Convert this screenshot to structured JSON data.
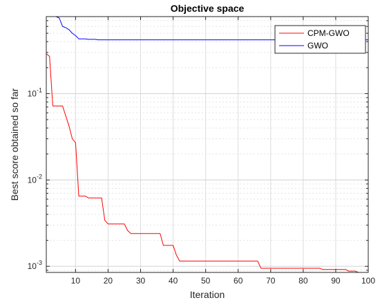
{
  "chart_data": {
    "type": "line",
    "title": "Objective space",
    "xlabel": "Iteration",
    "ylabel": "Best score obtained so far",
    "xlim": [
      1,
      100
    ],
    "ylim": [
      0.00085,
      0.78
    ],
    "yscale": "log",
    "grid": true,
    "minor_grid": true,
    "legend_position": "top-right",
    "x_ticks": [
      {
        "v": 10,
        "label": "10"
      },
      {
        "v": 20,
        "label": "20"
      },
      {
        "v": 30,
        "label": "30"
      },
      {
        "v": 40,
        "label": "40"
      },
      {
        "v": 50,
        "label": "50"
      },
      {
        "v": 60,
        "label": "60"
      },
      {
        "v": 70,
        "label": "70"
      },
      {
        "v": 80,
        "label": "80"
      },
      {
        "v": 90,
        "label": "90"
      },
      {
        "v": 100,
        "label": "100"
      }
    ],
    "y_ticks": [
      {
        "v": 0.001,
        "base": "10",
        "exp": "-3"
      },
      {
        "v": 0.01,
        "base": "10",
        "exp": "-2"
      },
      {
        "v": 0.1,
        "base": "10",
        "exp": "-1"
      }
    ],
    "series": [
      {
        "name": "CPM-GWO",
        "color": "#ff0000",
        "points": [
          [
            1,
            0.29
          ],
          [
            2,
            0.27
          ],
          [
            3,
            0.072
          ],
          [
            4,
            0.072
          ],
          [
            5,
            0.072
          ],
          [
            6,
            0.072
          ],
          [
            7,
            0.055
          ],
          [
            8,
            0.042
          ],
          [
            9,
            0.03
          ],
          [
            10,
            0.027
          ],
          [
            11,
            0.0065
          ],
          [
            12,
            0.0065
          ],
          [
            13,
            0.0065
          ],
          [
            14,
            0.0062
          ],
          [
            15,
            0.0062
          ],
          [
            16,
            0.0062
          ],
          [
            17,
            0.0062
          ],
          [
            18,
            0.0062
          ],
          [
            19,
            0.0034
          ],
          [
            20,
            0.0031
          ],
          [
            21,
            0.0031
          ],
          [
            22,
            0.0031
          ],
          [
            23,
            0.0031
          ],
          [
            24,
            0.0031
          ],
          [
            25,
            0.0031
          ],
          [
            26,
            0.0026
          ],
          [
            27,
            0.0024
          ],
          [
            28,
            0.0024
          ],
          [
            29,
            0.0024
          ],
          [
            30,
            0.0024
          ],
          [
            31,
            0.0024
          ],
          [
            32,
            0.0024
          ],
          [
            33,
            0.0024
          ],
          [
            34,
            0.0024
          ],
          [
            35,
            0.0024
          ],
          [
            36,
            0.0024
          ],
          [
            37,
            0.00175
          ],
          [
            38,
            0.00175
          ],
          [
            39,
            0.00175
          ],
          [
            40,
            0.00175
          ],
          [
            41,
            0.00135
          ],
          [
            42,
            0.00115
          ],
          [
            50,
            0.00115
          ],
          [
            60,
            0.00115
          ],
          [
            66,
            0.00115
          ],
          [
            67,
            0.00095
          ],
          [
            75,
            0.00095
          ],
          [
            85,
            0.00095
          ],
          [
            86,
            0.00092
          ],
          [
            90,
            0.00092
          ],
          [
            93,
            0.00092
          ],
          [
            94,
            0.00088
          ],
          [
            96,
            0.00088
          ],
          [
            97,
            0.00085
          ],
          [
            100,
            0.00085
          ]
        ]
      },
      {
        "name": "GWO",
        "color": "#0000ff",
        "points": [
          [
            1,
            0.78
          ],
          [
            2,
            0.78
          ],
          [
            3,
            0.78
          ],
          [
            4,
            0.78
          ],
          [
            5,
            0.75
          ],
          [
            6,
            0.6
          ],
          [
            7,
            0.58
          ],
          [
            8,
            0.55
          ],
          [
            9,
            0.5
          ],
          [
            10,
            0.47
          ],
          [
            11,
            0.43
          ],
          [
            13,
            0.43
          ],
          [
            14,
            0.425
          ],
          [
            16,
            0.425
          ],
          [
            17,
            0.42
          ],
          [
            100,
            0.42
          ]
        ]
      }
    ]
  }
}
